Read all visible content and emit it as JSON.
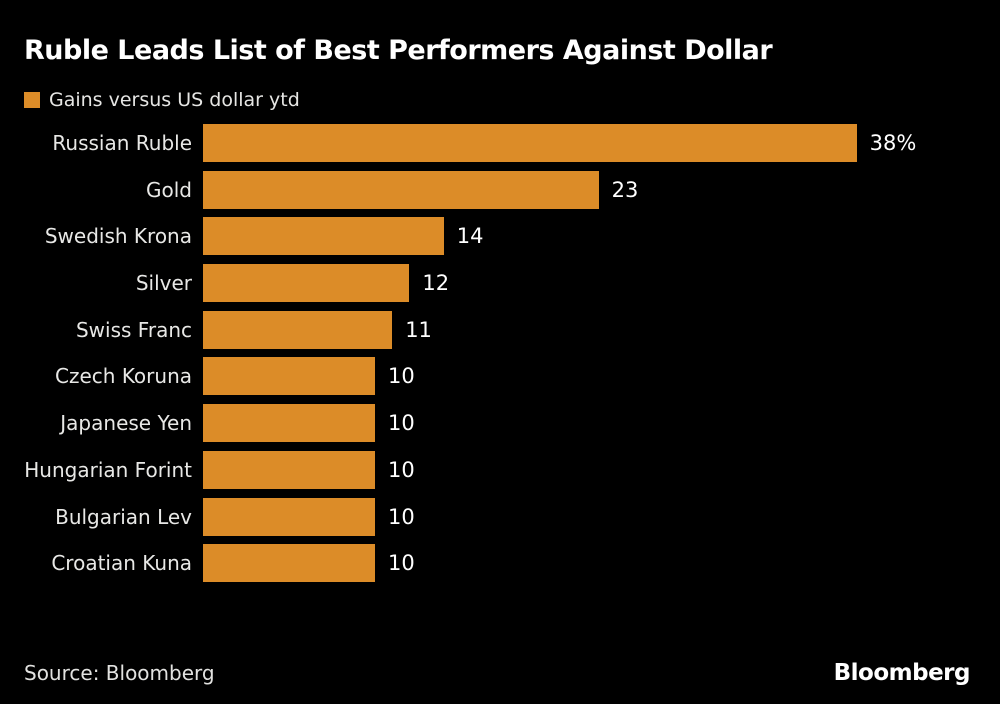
{
  "title": "Ruble Leads List of Best Performers Against Dollar",
  "legend": {
    "label": "Gains versus US dollar ytd"
  },
  "chart_data": {
    "type": "bar",
    "orientation": "horizontal",
    "title": "Ruble Leads List of Best Performers Against Dollar",
    "series_name": "Gains versus US dollar ytd",
    "categories": [
      "Russian Ruble",
      "Gold",
      "Swedish Krona",
      "Silver",
      "Swiss Franc",
      "Czech Koruna",
      "Japanese Yen",
      "Hungarian Forint",
      "Bulgarian Lev",
      "Croatian Kuna"
    ],
    "values": [
      38,
      23,
      14,
      12,
      11,
      10,
      10,
      10,
      10,
      10
    ],
    "value_labels": [
      "38%",
      "23",
      "14",
      "12",
      "11",
      "10",
      "10",
      "10",
      "10",
      "10"
    ],
    "xlabel": "",
    "ylabel": "",
    "xlim": [
      0,
      38
    ],
    "grid": false,
    "legend_position": "top-left",
    "bar_color": "#dc8c28"
  },
  "footer": {
    "source": "Source: Bloomberg",
    "brand": "Bloomberg"
  },
  "colors": {
    "background": "#000000",
    "bar": "#dc8c28",
    "title_text": "#ffffff",
    "label_text": "#e8e8e6",
    "value_text": "#ffffff"
  }
}
